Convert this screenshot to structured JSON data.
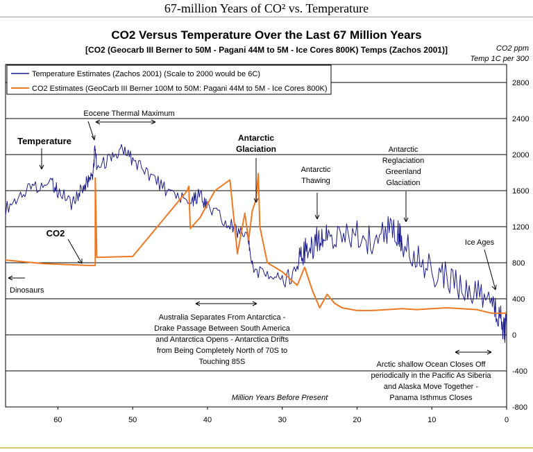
{
  "page_title": "67-million Years of CO² vs. Temperature",
  "chart_data": {
    "type": "line",
    "title": "CO2 Versus Temperature Over the Last 67 Million Years",
    "subtitle": "[CO2 (Geocarb III Berner to 50M - Pagani 44M to 5M - Ice Cores 800K) Temps (Zachos 2001)]",
    "right_axis_label_1": "CO2 ppm",
    "right_axis_label_2": "Temp 1C per 300",
    "xlabel": "Million Years Before Present",
    "xlim": [
      67,
      0
    ],
    "ylim": [
      -800,
      3000
    ],
    "x_ticks": [
      "60",
      "50",
      "40",
      "30",
      "20",
      "10",
      "0"
    ],
    "y_ticks": [
      "2800",
      "2400",
      "2000",
      "1600",
      "1200",
      "800",
      "400",
      "0",
      "-400",
      "-800"
    ],
    "grid": true,
    "legend_position": "top-left",
    "series": [
      {
        "name": "Temperature Estimates (Zachos 2001) (Scale to 2000 would be 6C)",
        "color": "#1a1a8c",
        "points": [
          [
            67,
            1400
          ],
          [
            65,
            1550
          ],
          [
            63,
            1650
          ],
          [
            61,
            1700
          ],
          [
            60,
            1600
          ],
          [
            58,
            1450
          ],
          [
            57,
            1600
          ],
          [
            56,
            1700
          ],
          [
            55.3,
            1800
          ],
          [
            55,
            2100
          ],
          [
            54.8,
            1850
          ],
          [
            53,
            1950
          ],
          [
            51.5,
            2050
          ],
          [
            50,
            1950
          ],
          [
            48,
            1800
          ],
          [
            46,
            1650
          ],
          [
            44,
            1500
          ],
          [
            42,
            1500
          ],
          [
            41,
            1550
          ],
          [
            40,
            1400
          ],
          [
            38,
            1300
          ],
          [
            36,
            1150
          ],
          [
            34.5,
            1050
          ],
          [
            34,
            750
          ],
          [
            32,
            650
          ],
          [
            30,
            650
          ],
          [
            28,
            750
          ],
          [
            27,
            950
          ],
          [
            26,
            1000
          ],
          [
            25,
            1100
          ],
          [
            24,
            1050
          ],
          [
            22,
            1100
          ],
          [
            20,
            1100
          ],
          [
            18,
            1050
          ],
          [
            16,
            1150
          ],
          [
            14.5,
            1150
          ],
          [
            14,
            1000
          ],
          [
            12,
            900
          ],
          [
            10,
            700
          ],
          [
            8,
            650
          ],
          [
            6,
            500
          ],
          [
            4,
            450
          ],
          [
            2,
            350
          ],
          [
            1,
            200
          ],
          [
            0.3,
            50
          ],
          [
            0,
            150
          ]
        ]
      },
      {
        "name": "CO2 Estimates (GeoCarb III Berner 100M to 50M: Pagani 44M to 5M - Ice Cores 800K)",
        "color": "#f07820",
        "points": [
          [
            67,
            830
          ],
          [
            62,
            790
          ],
          [
            56,
            770
          ],
          [
            55,
            770
          ],
          [
            55,
            1740
          ],
          [
            54.8,
            860
          ],
          [
            50,
            870
          ],
          [
            42.7,
            1600
          ],
          [
            42.5,
            1650
          ],
          [
            42.3,
            1180
          ],
          [
            41,
            1300
          ],
          [
            39,
            1600
          ],
          [
            37,
            1720
          ],
          [
            36,
            900
          ],
          [
            35,
            1350
          ],
          [
            34.5,
            1050
          ],
          [
            34,
            1380
          ],
          [
            33.5,
            1500
          ],
          [
            33.2,
            1790
          ],
          [
            33,
            1200
          ],
          [
            32,
            800
          ],
          [
            30,
            700
          ],
          [
            28,
            550
          ],
          [
            27,
            750
          ],
          [
            26,
            500
          ],
          [
            25,
            300
          ],
          [
            24,
            450
          ],
          [
            23,
            350
          ],
          [
            22,
            300
          ],
          [
            20,
            270
          ],
          [
            18,
            270
          ],
          [
            16,
            280
          ],
          [
            14,
            290
          ],
          [
            12,
            280
          ],
          [
            10,
            290
          ],
          [
            8,
            300
          ],
          [
            6,
            290
          ],
          [
            4,
            280
          ],
          [
            2,
            240
          ],
          [
            1,
            240
          ],
          [
            0,
            240
          ]
        ]
      }
    ],
    "annotations": {
      "eocene": "Eocene Thermal Maximum",
      "temperature": "Temperature",
      "co2": "CO2",
      "antarctic_glaciation": [
        "Antarctic",
        "Glaciation"
      ],
      "antarctic_thawing": [
        "Antarctic",
        "Thawing"
      ],
      "antarctic_reglaciation": [
        "Antarctic",
        "Reglaciation",
        "Greenland",
        "Glaciation"
      ],
      "ice_ages": "Ice Ages",
      "dinosaurs": "Dinosaurs",
      "australia": [
        "Australia Separates From Antarctica -",
        "Drake Passage Between South America",
        "and Antarctica Opens - Antarctica Drifts",
        "from Being Completely North of 70S to",
        "Touching 85S"
      ],
      "arctic": [
        "Arctic shallow Ocean Closes Off",
        "periodically in the Pacific As Siberia",
        "and Alaska Move Together -",
        "Panama Isthmus Closes"
      ]
    },
    "colors": {
      "temperature": "#1a1a8c",
      "co2": "#f07820"
    }
  }
}
